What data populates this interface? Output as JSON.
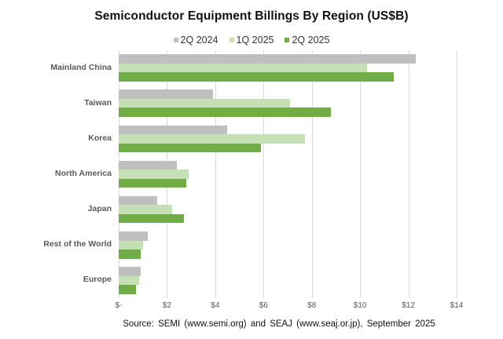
{
  "chart_data": {
    "type": "bar",
    "orientation": "horizontal",
    "title": "Semiconductor Equipment Billings By Region (US$B)",
    "xlabel": "",
    "ylabel": "",
    "categories": [
      "Mainland China",
      "Taiwan",
      "Korea",
      "North America",
      "Japan",
      "Rest of the World",
      "Europe"
    ],
    "series": [
      {
        "name": "2Q 2024",
        "color": "#bfbfbf",
        "values": [
          12.3,
          3.9,
          4.5,
          2.4,
          1.6,
          1.2,
          0.9
        ]
      },
      {
        "name": "1Q 2025",
        "color": "#c5e0b4",
        "values": [
          10.3,
          7.1,
          7.7,
          2.9,
          2.2,
          1.0,
          0.85
        ]
      },
      {
        "name": "2Q 2025",
        "color": "#70ad47",
        "values": [
          11.4,
          8.8,
          5.9,
          2.8,
          2.7,
          0.9,
          0.7
        ]
      }
    ],
    "xticks": [
      "$-",
      "$2",
      "$4",
      "$6",
      "$8",
      "$10",
      "$12",
      "$14"
    ],
    "xlim": [
      0,
      14
    ],
    "grid": true,
    "legend_position": "top"
  },
  "footer": {
    "source": "Source: SEMI (www.semi.org) and SEAJ (www.seaj.or.jp), September 2025"
  }
}
